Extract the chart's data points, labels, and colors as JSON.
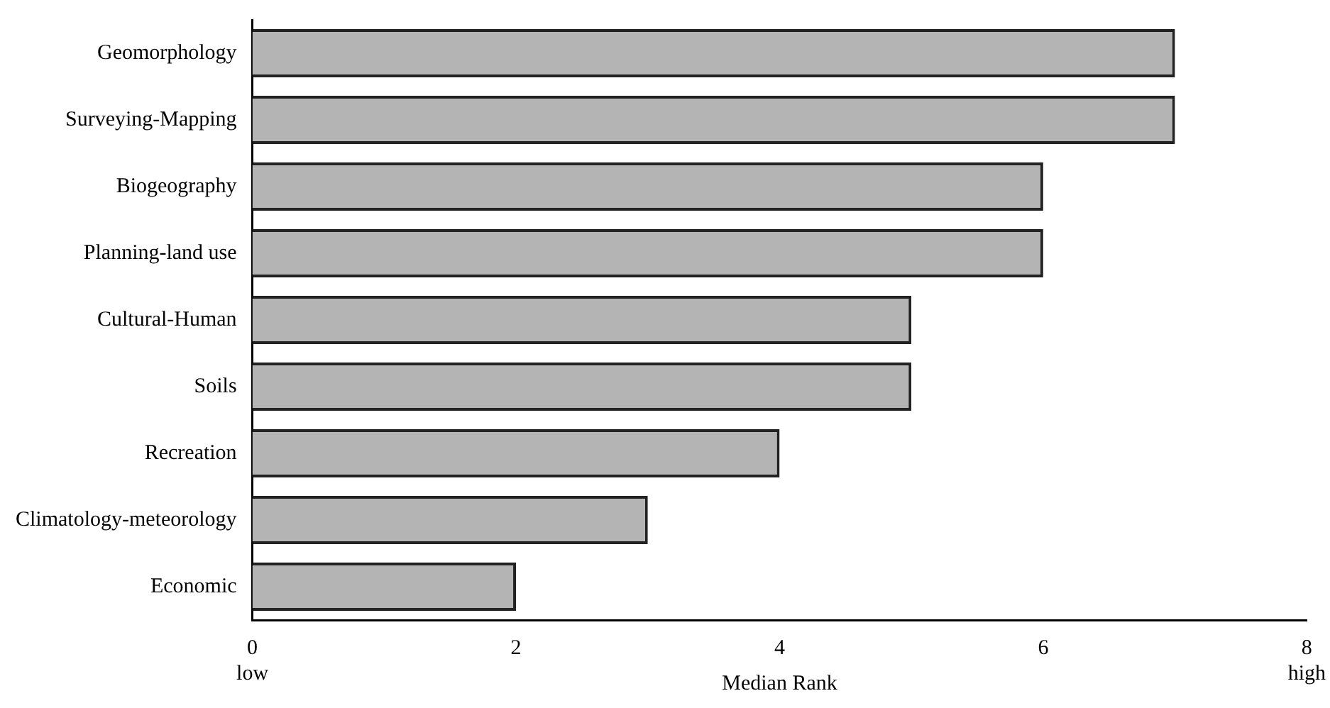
{
  "chart_data": {
    "type": "bar",
    "orientation": "horizontal",
    "xlabel": "Median Rank",
    "categories": [
      "Geomorphology",
      "Surveying-Mapping",
      "Biogeography",
      "Planning-land use",
      "Cultural-Human",
      "Soils",
      "Recreation",
      "Climatology-meteorology",
      "Economic"
    ],
    "values": [
      7,
      7,
      6,
      6,
      5,
      5,
      4,
      3,
      2
    ],
    "color": "#b4b4b4",
    "xlim": [
      0,
      8
    ],
    "xticks": [
      {
        "value": 0,
        "label": "0\nlow"
      },
      2,
      4,
      6,
      {
        "value": 8,
        "label": "8\nhigh"
      }
    ],
    "grid": false,
    "legend": false
  }
}
